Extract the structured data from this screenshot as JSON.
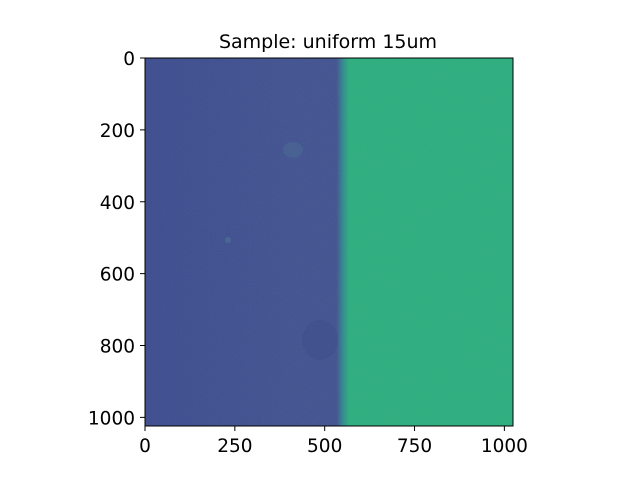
{
  "chart_data": {
    "type": "heatmap",
    "title": "Sample: uniform 15um",
    "xlabel": "",
    "ylabel": "",
    "xlim": [
      0,
      1024
    ],
    "ylim": [
      1024,
      0
    ],
    "x_ticks": [
      0,
      250,
      500,
      750,
      1000
    ],
    "y_ticks": [
      0,
      200,
      400,
      600,
      800,
      1000
    ],
    "x_tick_labels": [
      "0",
      "250",
      "500",
      "750",
      "1000"
    ],
    "y_tick_labels": [
      "0",
      "200",
      "400",
      "600",
      "800",
      "1000"
    ],
    "colormap": "viridis",
    "regions": [
      {
        "name": "left",
        "x_range": [
          0,
          550
        ],
        "color": "#41528f"
      },
      {
        "name": "right",
        "x_range": [
          560,
          1024
        ],
        "color": "#2cad7e"
      }
    ],
    "transition_x": 555,
    "grid": false,
    "colors": {
      "left_dark": "#3b4b8e",
      "left_mid": "#3f5190",
      "right": "#2aae7e",
      "edge": "#2f8a8c"
    }
  }
}
